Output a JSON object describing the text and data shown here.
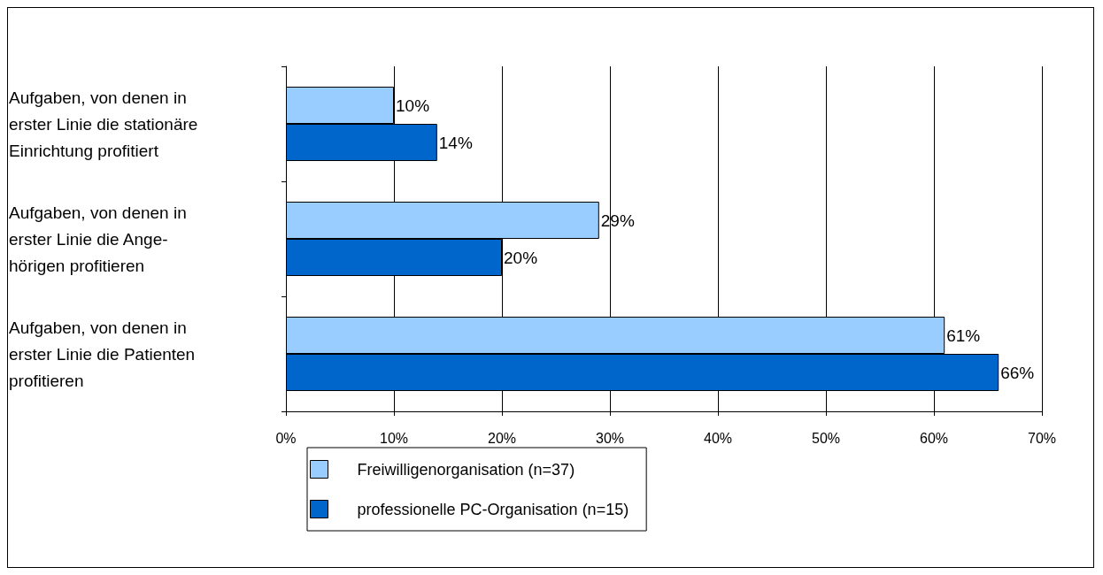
{
  "chart_data": {
    "type": "bar",
    "orientation": "horizontal",
    "categories": [
      "Aufgaben, von denen in\nerster Linie die stationäre\nEinrichtung profitiert",
      "Aufgaben, von denen in\nerster Linie die Ange-\nhörigen profitieren",
      "Aufgaben, von denen in\nerster Linie die Patienten\nprofitieren"
    ],
    "series": [
      {
        "name": "Freiwilligenorganisation (n=37)",
        "color": "#99ccff",
        "values": [
          10,
          29,
          61
        ],
        "value_labels": [
          "10%",
          "29%",
          "61%"
        ]
      },
      {
        "name": "professionelle PC-Organisation (n=15)",
        "color": "#0066cc",
        "values": [
          14,
          20,
          66
        ],
        "value_labels": [
          "14%",
          "20%",
          "66%"
        ]
      }
    ],
    "xlim": [
      0,
      70
    ],
    "xticks": [
      {
        "value": 0,
        "label": "0%"
      },
      {
        "value": 10,
        "label": "10%"
      },
      {
        "value": 20,
        "label": "20%"
      },
      {
        "value": 30,
        "label": "30%"
      },
      {
        "value": 40,
        "label": "40%"
      },
      {
        "value": 50,
        "label": "50%"
      },
      {
        "value": 60,
        "label": "60%"
      },
      {
        "value": 70,
        "label": "70%"
      }
    ],
    "grid": "x",
    "legend": "bottom"
  }
}
